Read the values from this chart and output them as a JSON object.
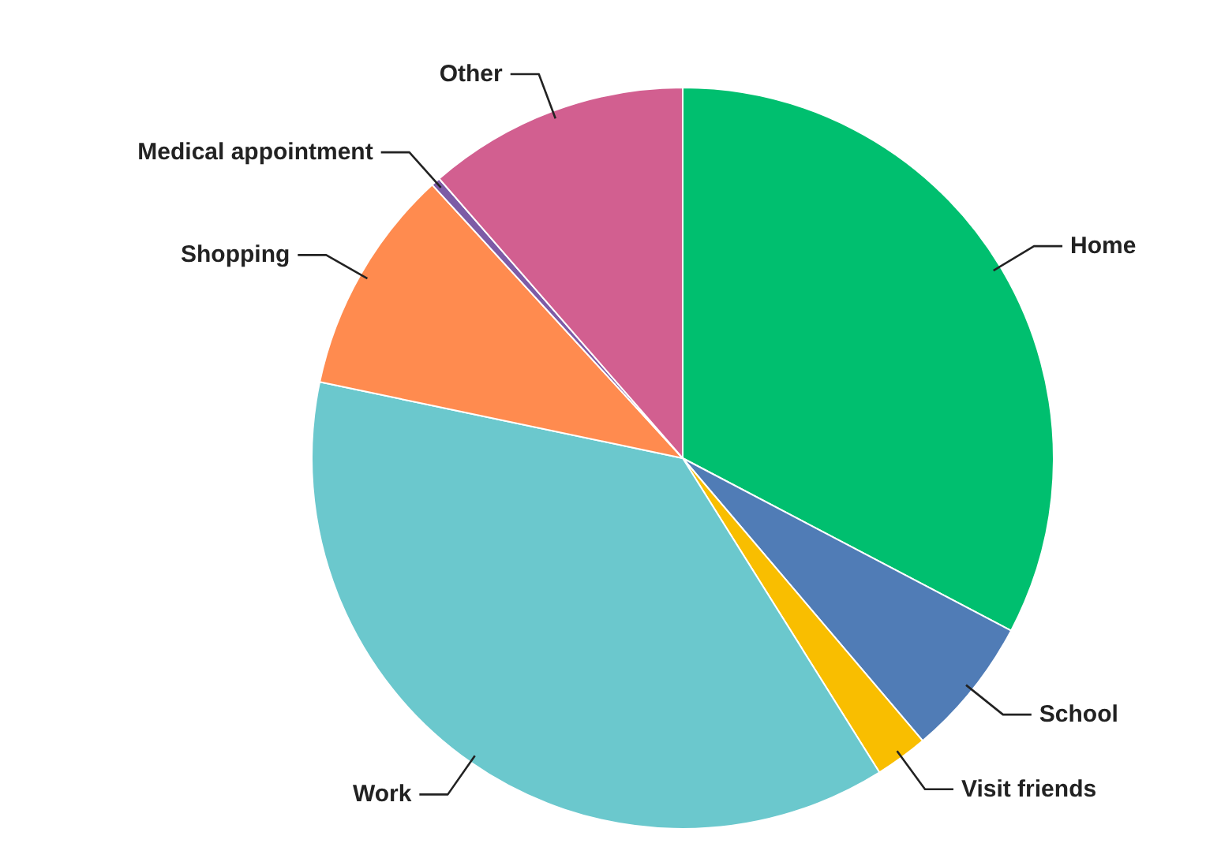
{
  "chart_data": {
    "type": "pie",
    "categories": [
      "Home",
      "School",
      "Visit friends",
      "Work",
      "Shopping",
      "Medical appointment",
      "Other"
    ],
    "values": [
      32.7,
      6.1,
      2.3,
      37.2,
      9.9,
      0.4,
      11.4
    ],
    "colors": [
      "#00bf6f",
      "#507cb6",
      "#f9be00",
      "#6bc8cd",
      "#ff8b4f",
      "#7d5ba6",
      "#d25f90"
    ]
  }
}
